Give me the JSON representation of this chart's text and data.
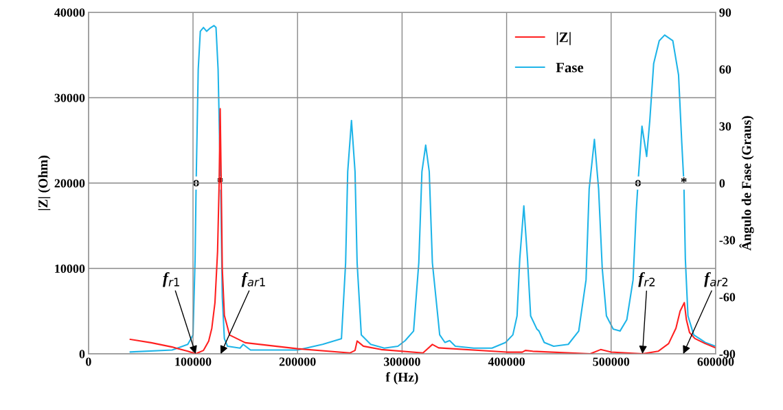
{
  "chart_data": {
    "type": "line",
    "xlabel": "f (Hz)",
    "ylabel": "|Z| (Ohm)",
    "y2label": "Ângulo de Fase (Graus)",
    "xlim": [
      0,
      600000
    ],
    "xticks": [
      0,
      100000,
      200000,
      300000,
      400000,
      500000,
      600000
    ],
    "ylim": [
      0,
      40000
    ],
    "yticks": [
      0,
      10000,
      20000,
      30000,
      40000
    ],
    "y2lim": [
      -90,
      90
    ],
    "y2ticks": [
      -90,
      -60,
      -30,
      0,
      30,
      60,
      90
    ],
    "grid": true,
    "legend": "top right",
    "marker": "none",
    "line_style": "solid",
    "series": [
      {
        "name": "|Z|",
        "color": "#ff2020",
        "x": [
          40000,
          60000,
          80000,
          95000,
          102500,
          110000,
          115000,
          118000,
          121000,
          123500,
          125000,
          126000,
          127000,
          128000,
          130000,
          135000,
          150000,
          200000,
          250000,
          255000,
          257000,
          263000,
          280000,
          320000,
          329000,
          335000,
          400000,
          415000,
          418000,
          425000,
          480000,
          490000,
          500000,
          530000,
          545000,
          555000,
          562000,
          566000,
          570000,
          572000,
          575000,
          580000,
          590000,
          600000
        ],
        "values": [
          1700,
          1300,
          800,
          300,
          0,
          400,
          1500,
          3000,
          6000,
          12000,
          20000,
          28700,
          20000,
          10000,
          4500,
          2200,
          1300,
          600,
          100,
          400,
          1500,
          900,
          500,
          100,
          1100,
          700,
          200,
          200,
          400,
          300,
          0,
          500,
          200,
          0,
          300,
          1200,
          3000,
          5000,
          6000,
          4000,
          2500,
          1800,
          1200,
          700
        ]
      },
      {
        "name": "Fase",
        "color": "#1eb4e8",
        "axis": "y2",
        "x": [
          40000,
          80000,
          95000,
          100000,
          102000,
          103000,
          105000,
          107000,
          110000,
          113000,
          116000,
          120000,
          122000,
          124000,
          125500,
          126500,
          128000,
          130000,
          133000,
          145000,
          148000,
          155000,
          200000,
          224000,
          230000,
          242000,
          246000,
          248000,
          251600,
          255000,
          257000,
          261000,
          270000,
          283000,
          296000,
          303000,
          311000,
          316000,
          319000,
          322600,
          326000,
          329000,
          336000,
          341000,
          345500,
          351000,
          368500,
          386000,
          399000,
          406000,
          410000,
          412600,
          416500,
          420000,
          423000,
          429000,
          431000,
          436000,
          445000,
          459000,
          469000,
          476000,
          479000,
          484000,
          488000,
          491500,
          495500,
          502000,
          508500,
          515000,
          521000,
          524000,
          525700,
          529500,
          534000,
          537000,
          540700,
          546000,
          551200,
          559000,
          564500,
          567600,
          569600,
          571000,
          573500,
          579000,
          590000,
          600000
        ],
        "values": [
          -89,
          -88,
          -85,
          -80,
          -40,
          0,
          60,
          80,
          82,
          80,
          81.5,
          83,
          82,
          60,
          20,
          0,
          -60,
          -82,
          -86,
          -87,
          -85,
          -88,
          -88,
          -85,
          -84,
          -82,
          -42,
          6,
          33,
          6,
          -42,
          -80,
          -85,
          -87,
          -86,
          -83,
          -78,
          -42,
          6,
          20,
          6,
          -42,
          -80,
          -84,
          -83,
          -86,
          -87,
          -87,
          -84,
          -80,
          -70,
          -40,
          -12,
          -40,
          -70,
          -77,
          -78,
          -84,
          -86,
          -85,
          -78,
          -51,
          -3,
          23,
          -3,
          -45,
          -70,
          -77,
          -78,
          -72,
          -51,
          -15,
          0,
          30,
          14,
          33,
          63,
          75,
          78,
          75,
          57,
          21,
          0,
          -40,
          -70,
          -80,
          -84,
          -86
        ]
      }
    ],
    "annotations": [
      {
        "text": "o",
        "x": 103000,
        "y": 20000
      },
      {
        "text": "*",
        "x": 126000,
        "y": 20000
      },
      {
        "text": "o",
        "x": 525700,
        "y": 20000
      },
      {
        "text": "*",
        "x": 569600,
        "y": 20000
      },
      {
        "text": "f$_{r1}$",
        "x": 102500,
        "y": 0
      },
      {
        "text": "f$_{ar1}$",
        "x": 126500
      },
      {
        "text": "f$_{r2}$",
        "x": 530000,
        "y": 0
      },
      {
        "text": "f$_{ar2}$",
        "x": 569000
      }
    ]
  }
}
